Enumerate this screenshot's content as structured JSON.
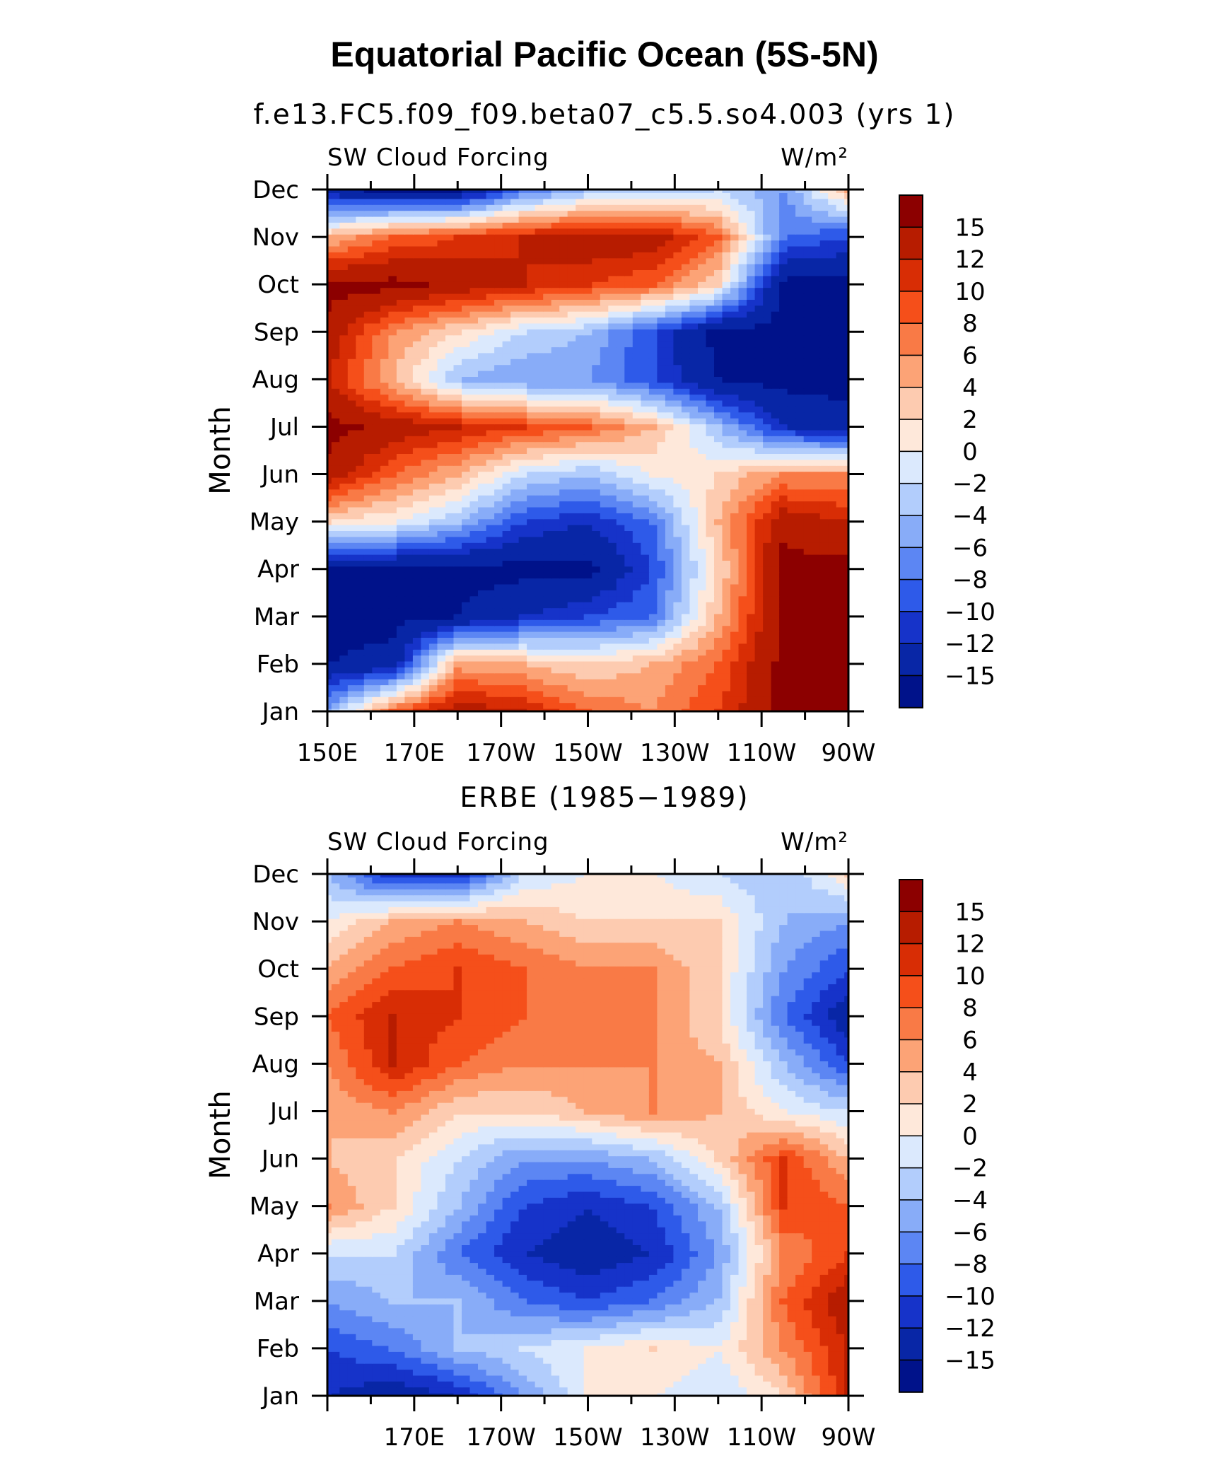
{
  "figure": {
    "title": "Equatorial Pacific Ocean (5S-5N)"
  },
  "colorbar": {
    "levels": [
      "15",
      "12",
      "10",
      "8",
      "6",
      "4",
      "2",
      "0",
      "−2",
      "−4",
      "−6",
      "−8",
      "−10",
      "−12",
      "−15"
    ],
    "colors": [
      "#8c0000",
      "#b71c00",
      "#d82d05",
      "#f54f1a",
      "#f97a46",
      "#fca376",
      "#fdcbb0",
      "#fee8da",
      "#dbe9fd",
      "#b2cdfc",
      "#88acf8",
      "#5c86f3",
      "#2e5ae9",
      "#1633c9",
      "#0826a6",
      "#00128a"
    ]
  },
  "chart_data": [
    {
      "type": "heatmap",
      "subtitle": "f.e13.FC5.f09_f09.beta07_c5.5.so4.003 (yrs 1)",
      "left_label": "SW Cloud Forcing",
      "right_label": "W/m²",
      "ylabel": "Month",
      "x_ticks": [
        "150E",
        "170E",
        "170W",
        "150W",
        "130W",
        "110W",
        "90W"
      ],
      "y_ticks": [
        "Jan",
        "Feb",
        "Mar",
        "Apr",
        "May",
        "Jun",
        "Jul",
        "Aug",
        "Sep",
        "Oct",
        "Nov",
        "Dec"
      ],
      "xlim": [
        150,
        270
      ],
      "units": "W/m²",
      "columns_lon": [
        150,
        165,
        180,
        195,
        210,
        225,
        240,
        255,
        270
      ],
      "values": [
        [
          -5,
          8,
          14,
          12,
          8,
          6,
          10,
          16,
          16
        ],
        [
          -15,
          -14,
          5,
          4,
          2,
          4,
          8,
          16,
          16
        ],
        [
          -16,
          -16,
          -15,
          -12,
          -10,
          -8,
          4,
          16,
          16
        ],
        [
          -16,
          -16,
          -16,
          -16,
          -16,
          -10,
          2,
          16,
          16
        ],
        [
          2,
          0,
          -4,
          -10,
          -12,
          -8,
          4,
          14,
          12
        ],
        [
          14,
          8,
          4,
          -2,
          -4,
          0,
          2,
          6,
          6
        ],
        [
          16,
          14,
          12,
          10,
          8,
          4,
          -4,
          -12,
          -14
        ],
        [
          12,
          4,
          -4,
          -6,
          -6,
          -10,
          -15,
          -16,
          -16
        ],
        [
          14,
          6,
          2,
          -2,
          -4,
          -10,
          -16,
          -16,
          -16
        ],
        [
          16,
          16,
          14,
          12,
          10,
          8,
          2,
          -16,
          -16
        ],
        [
          4,
          8,
          10,
          12,
          14,
          14,
          8,
          -8,
          -10
        ],
        [
          -14,
          -16,
          -16,
          -8,
          -4,
          -4,
          -2,
          -6,
          4
        ]
      ]
    },
    {
      "type": "heatmap",
      "subtitle": "ERBE (1985−1989)",
      "left_label": "SW Cloud Forcing",
      "right_label": "W/m²",
      "ylabel": "Month",
      "x_ticks": [
        "170E",
        "170W",
        "150W",
        "130W",
        "110W",
        "90W"
      ],
      "y_ticks": [
        "Jan",
        "Feb",
        "Mar",
        "Apr",
        "May",
        "Jun",
        "Jul",
        "Aug",
        "Sep",
        "Oct",
        "Nov",
        "Dec"
      ],
      "xlim": [
        150,
        270
      ],
      "units": "W/m²",
      "columns_lon": [
        150,
        165,
        180,
        195,
        210,
        225,
        240,
        255,
        270
      ],
      "values": [
        [
          -12,
          -14,
          -12,
          -6,
          0,
          0,
          -2,
          2,
          12
        ],
        [
          -10,
          -8,
          -4,
          -2,
          0,
          2,
          0,
          6,
          12
        ],
        [
          -6,
          -4,
          -4,
          -8,
          -10,
          -8,
          -4,
          8,
          14
        ],
        [
          -2,
          -2,
          -8,
          -12,
          -14,
          -12,
          -6,
          6,
          10
        ],
        [
          6,
          2,
          -4,
          -10,
          -12,
          -10,
          -4,
          10,
          8
        ],
        [
          4,
          2,
          -2,
          -6,
          -6,
          -4,
          2,
          10,
          4
        ],
        [
          4,
          6,
          2,
          2,
          4,
          6,
          4,
          0,
          -2
        ],
        [
          6,
          12,
          8,
          6,
          6,
          6,
          4,
          -4,
          -10
        ],
        [
          8,
          12,
          10,
          8,
          6,
          6,
          2,
          -8,
          -14
        ],
        [
          4,
          8,
          10,
          8,
          6,
          6,
          2,
          -6,
          -10
        ],
        [
          0,
          4,
          6,
          4,
          2,
          2,
          2,
          -4,
          -6
        ],
        [
          -4,
          -12,
          -12,
          -2,
          0,
          0,
          -2,
          -4,
          2
        ]
      ]
    }
  ]
}
